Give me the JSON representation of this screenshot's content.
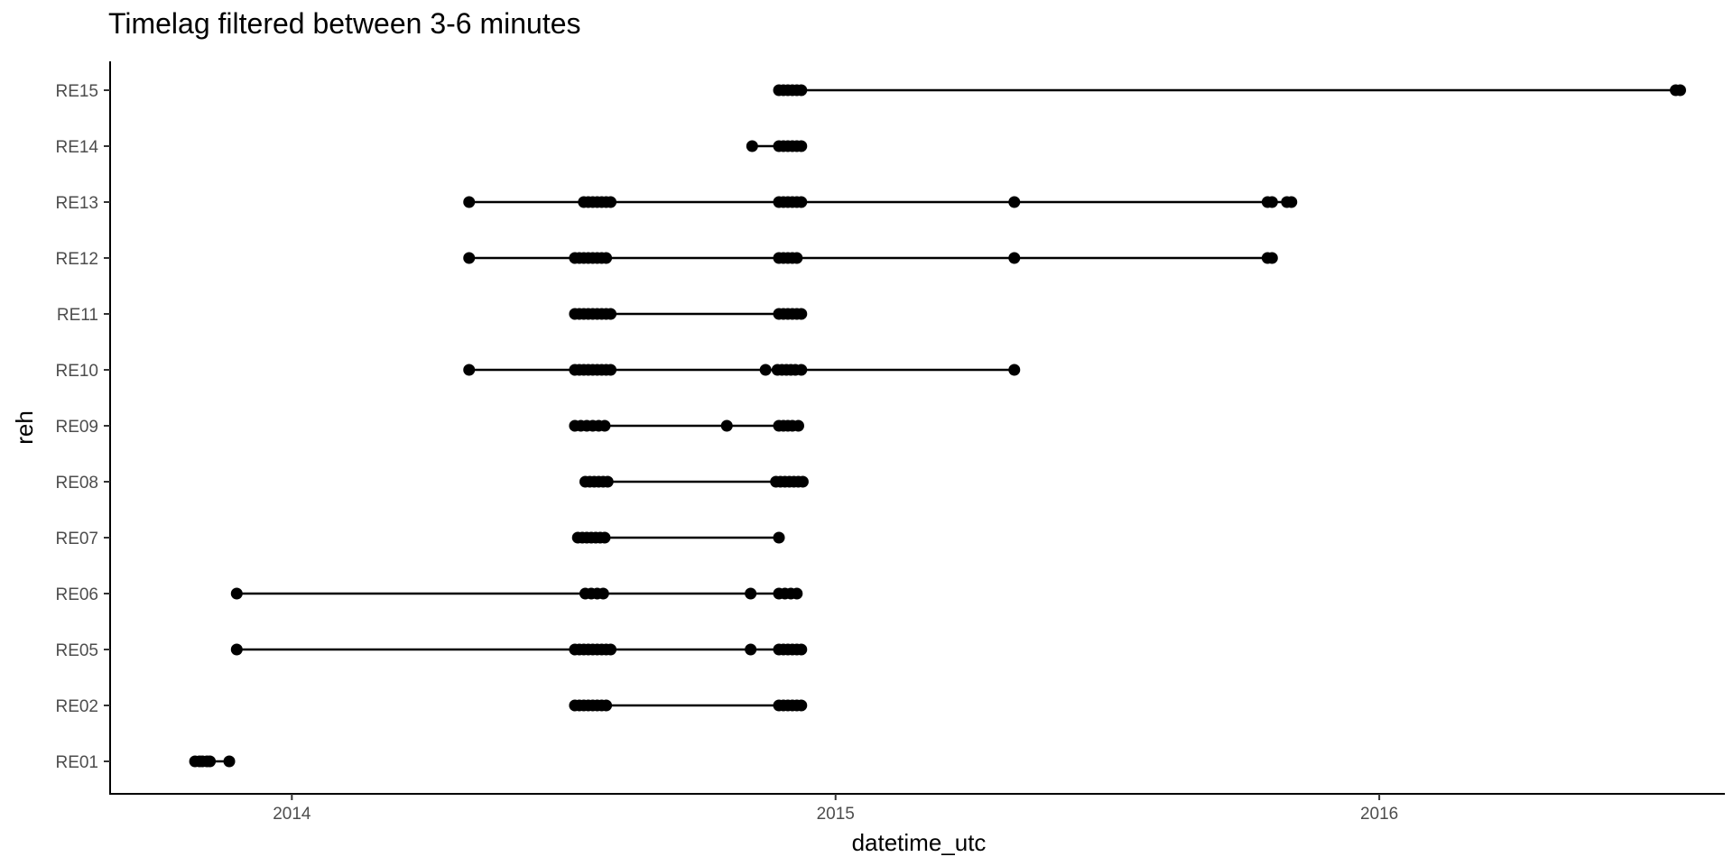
{
  "chart_data": {
    "type": "scatter",
    "title": "Timelag filtered between 3-6 minutes",
    "xlabel": "datetime_utc",
    "ylabel": "reh",
    "x_ticks": [
      "2014",
      "2015",
      "2016"
    ],
    "xlim": [
      "2013-09-01",
      "2016-08-20"
    ],
    "grid": false,
    "legend": "none",
    "point_color": "#000000",
    "line_color": "#000000",
    "series": [
      {
        "name": "RE01",
        "points": [
          "2013-10-28",
          "2013-10-31",
          "2013-11-02",
          "2013-11-05",
          "2013-11-07",
          "2013-11-20"
        ]
      },
      {
        "name": "RE02",
        "points": [
          "2014-07-10",
          "2014-07-13",
          "2014-07-16",
          "2014-07-19",
          "2014-07-22",
          "2014-07-25",
          "2014-07-28",
          "2014-07-31",
          "2014-11-24",
          "2014-11-27",
          "2014-11-30",
          "2014-12-03",
          "2014-12-06",
          "2014-12-09"
        ]
      },
      {
        "name": "RE05",
        "points": [
          "2013-11-25",
          "2014-07-10",
          "2014-07-13",
          "2014-07-16",
          "2014-07-19",
          "2014-07-22",
          "2014-07-25",
          "2014-07-28",
          "2014-07-31",
          "2014-08-03",
          "2014-11-05",
          "2014-11-24",
          "2014-11-27",
          "2014-11-30",
          "2014-12-03",
          "2014-12-06",
          "2014-12-09"
        ]
      },
      {
        "name": "RE06",
        "points": [
          "2013-11-25",
          "2014-07-17",
          "2014-07-21",
          "2014-07-25",
          "2014-07-29",
          "2014-11-05",
          "2014-11-24",
          "2014-11-28",
          "2014-12-02",
          "2014-12-06"
        ]
      },
      {
        "name": "RE07",
        "points": [
          "2014-07-12",
          "2014-07-15",
          "2014-07-18",
          "2014-07-21",
          "2014-07-24",
          "2014-07-27",
          "2014-07-30",
          "2014-11-24"
        ]
      },
      {
        "name": "RE08",
        "points": [
          "2014-07-17",
          "2014-07-20",
          "2014-07-23",
          "2014-07-26",
          "2014-07-29",
          "2014-08-01",
          "2014-11-22",
          "2014-11-25",
          "2014-11-28",
          "2014-12-01",
          "2014-12-04",
          "2014-12-07",
          "2014-12-10"
        ]
      },
      {
        "name": "RE09",
        "points": [
          "2014-07-10",
          "2014-07-14",
          "2014-07-18",
          "2014-07-22",
          "2014-07-26",
          "2014-07-30",
          "2014-10-20",
          "2014-11-24",
          "2014-11-27",
          "2014-11-30",
          "2014-12-03",
          "2014-12-07"
        ]
      },
      {
        "name": "RE10",
        "points": [
          "2014-04-30",
          "2014-07-10",
          "2014-07-13",
          "2014-07-16",
          "2014-07-19",
          "2014-07-22",
          "2014-07-25",
          "2014-07-28",
          "2014-07-31",
          "2014-08-03",
          "2014-11-15",
          "2014-11-23",
          "2014-11-26",
          "2014-11-29",
          "2014-12-02",
          "2014-12-05",
          "2014-12-09",
          "2015-05-01"
        ]
      },
      {
        "name": "RE11",
        "points": [
          "2014-07-10",
          "2014-07-13",
          "2014-07-16",
          "2014-07-19",
          "2014-07-22",
          "2014-07-25",
          "2014-07-28",
          "2014-07-31",
          "2014-08-03",
          "2014-11-24",
          "2014-11-27",
          "2014-11-30",
          "2014-12-03",
          "2014-12-06",
          "2014-12-09"
        ]
      },
      {
        "name": "RE12",
        "points": [
          "2014-04-30",
          "2014-07-10",
          "2014-07-13",
          "2014-07-16",
          "2014-07-19",
          "2014-07-22",
          "2014-07-25",
          "2014-07-28",
          "2014-07-31",
          "2014-11-24",
          "2014-11-27",
          "2014-11-30",
          "2014-12-03",
          "2014-12-06",
          "2015-05-01",
          "2015-10-18",
          "2015-10-21"
        ]
      },
      {
        "name": "RE13",
        "points": [
          "2014-04-30",
          "2014-07-16",
          "2014-07-19",
          "2014-07-22",
          "2014-07-25",
          "2014-07-28",
          "2014-07-31",
          "2014-08-03",
          "2014-11-24",
          "2014-11-27",
          "2014-11-30",
          "2014-12-03",
          "2014-12-06",
          "2014-12-09",
          "2015-05-01",
          "2015-10-18",
          "2015-10-21",
          "2015-10-31",
          "2015-11-03"
        ]
      },
      {
        "name": "RE14",
        "points": [
          "2014-11-06",
          "2014-11-24",
          "2014-11-27",
          "2014-11-30",
          "2014-12-03",
          "2014-12-06",
          "2014-12-09"
        ]
      },
      {
        "name": "RE15",
        "points": [
          "2014-11-24",
          "2014-11-27",
          "2014-11-30",
          "2014-12-03",
          "2014-12-06",
          "2014-12-09",
          "2016-07-18",
          "2016-07-21"
        ]
      }
    ]
  }
}
